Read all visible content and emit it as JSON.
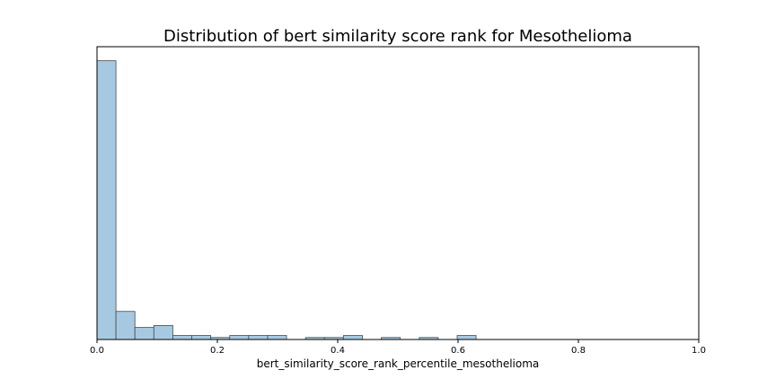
{
  "chart_data": {
    "type": "bar",
    "title": "Distribution of bert similarity score rank for Mesothelioma",
    "xlabel": "bert_similarity_score_rank_percentile_mesothelioma",
    "ylabel": "",
    "xlim": [
      0.0,
      1.0
    ],
    "ylim": [
      0,
      146
    ],
    "y_ticks_shown": false,
    "grid": false,
    "legend": "none",
    "bar_color": "#a6c9e1",
    "edge_color": "#4a4a4a",
    "x_ticks": [
      "0.0",
      "0.2",
      "0.4",
      "0.6",
      "0.8",
      "1.0"
    ],
    "bin_edges": [
      0.0,
      0.0315,
      0.063,
      0.0945,
      0.126,
      0.1575,
      0.189,
      0.2205,
      0.252,
      0.2835,
      0.315,
      0.3465,
      0.378,
      0.4095,
      0.441,
      0.4725,
      0.504,
      0.5355,
      0.567,
      0.5985,
      0.63
    ],
    "counts": [
      139,
      14,
      6,
      7,
      2,
      2,
      1,
      2,
      2,
      2,
      0,
      1,
      1,
      2,
      0,
      1,
      0,
      1,
      0,
      2
    ]
  }
}
